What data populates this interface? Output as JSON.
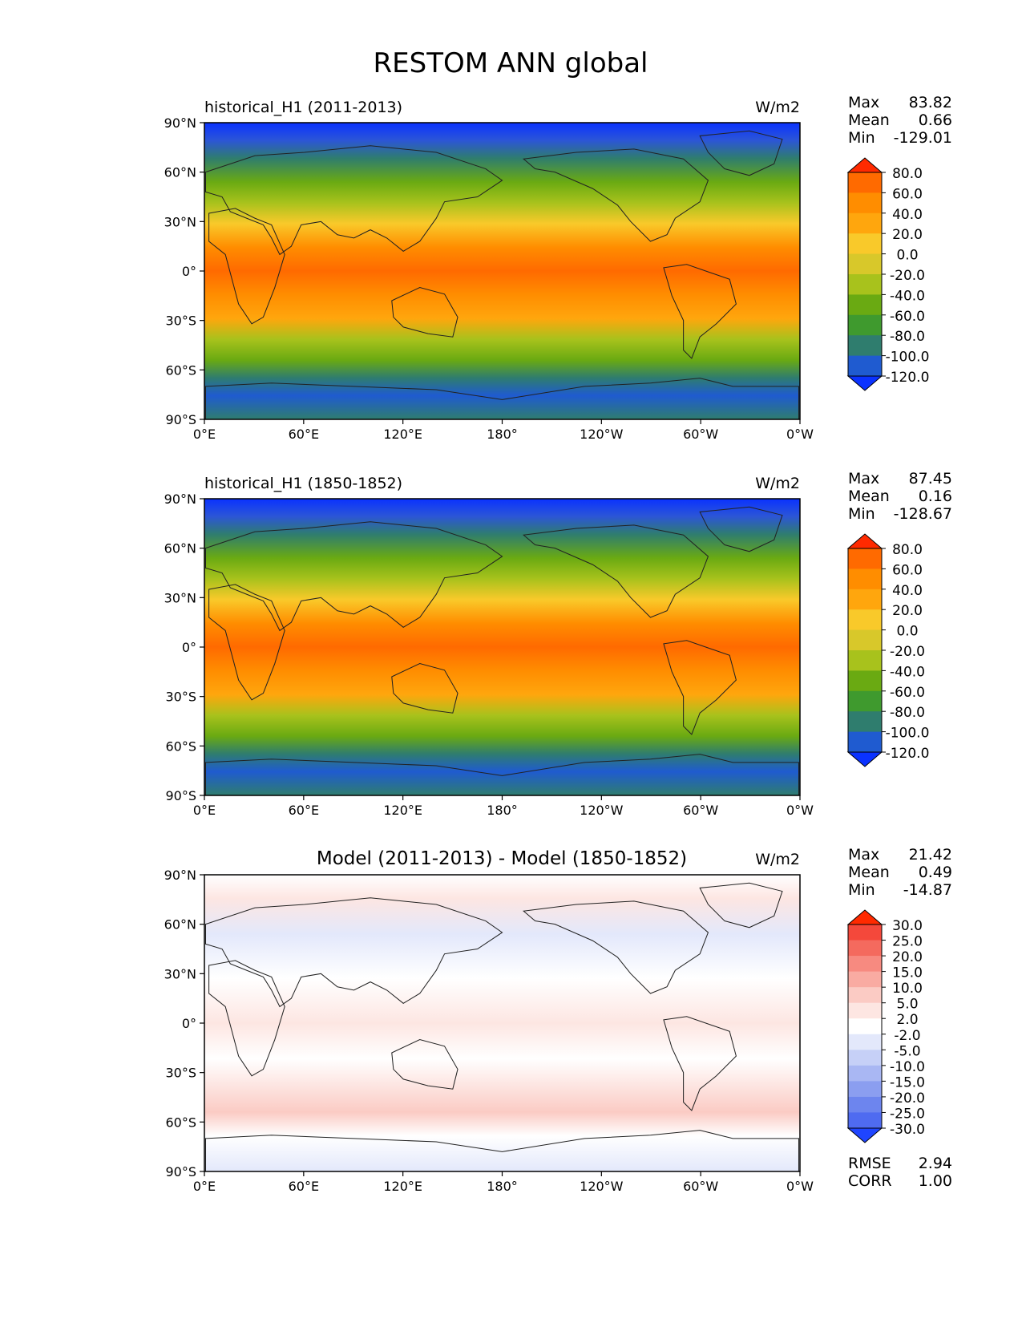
{
  "figure_title": "RESTOM ANN global",
  "units": "W/m2",
  "lat_ticks": [
    "90°N",
    "60°N",
    "30°N",
    "0°",
    "30°S",
    "60°S",
    "90°S"
  ],
  "lon_ticks": [
    "0°E",
    "60°E",
    "120°E",
    "180°",
    "120°W",
    "60°W",
    "0°W"
  ],
  "chart_data": [
    {
      "type": "heatmap",
      "title": "historical_H1 (2011-2013)",
      "units": "W/m2",
      "stats": {
        "max": "83.82",
        "mean": "0.66",
        "min": "-129.01"
      },
      "colorbar_levels": [
        "80.0",
        "60.0",
        "40.0",
        "20.0",
        "0.0",
        "-20.0",
        "-40.0",
        "-60.0",
        "-80.0",
        "-100.0",
        "-120.0"
      ],
      "colorbar_colors": [
        "#ff2a00",
        "#ff6a00",
        "#ff8d00",
        "#ffa60d",
        "#f9c92a",
        "#d8c82a",
        "#a8c21c",
        "#6aaa12",
        "#3f9a2e",
        "#2f7d6e",
        "#1f5bd0",
        "#0a32ff"
      ],
      "xlim": [
        0,
        360
      ],
      "ylim": [
        -90,
        90
      ]
    },
    {
      "type": "heatmap",
      "title": "historical_H1 (1850-1852)",
      "units": "W/m2",
      "stats": {
        "max": "87.45",
        "mean": "0.16",
        "min": "-128.67"
      },
      "colorbar_levels": [
        "80.0",
        "60.0",
        "40.0",
        "20.0",
        "0.0",
        "-20.0",
        "-40.0",
        "-60.0",
        "-80.0",
        "-100.0",
        "-120.0"
      ],
      "colorbar_colors": [
        "#ff2a00",
        "#ff6a00",
        "#ff8d00",
        "#ffa60d",
        "#f9c92a",
        "#d8c82a",
        "#a8c21c",
        "#6aaa12",
        "#3f9a2e",
        "#2f7d6e",
        "#1f5bd0",
        "#0a32ff"
      ],
      "xlim": [
        0,
        360
      ],
      "ylim": [
        -90,
        90
      ]
    },
    {
      "type": "heatmap",
      "title": "Model (2011-2013) - Model (1850-1852)",
      "units": "W/m2",
      "stats": {
        "max": "21.42",
        "mean": "0.49",
        "min": "-14.87"
      },
      "colorbar_levels": [
        "30.0",
        "25.0",
        "20.0",
        "15.0",
        "10.0",
        "5.0",
        "2.0",
        "-2.0",
        "-5.0",
        "-10.0",
        "-15.0",
        "-20.0",
        "-25.0",
        "-30.0"
      ],
      "colorbar_colors": [
        "#ff2a00",
        "#f4483b",
        "#f46a5e",
        "#f78a80",
        "#f9aba2",
        "#fbcbc4",
        "#fde6e2",
        "#ffffff",
        "#e3e8fb",
        "#c6d0f7",
        "#a9b7f3",
        "#8b9ef0",
        "#6d85ee",
        "#4f6bf0",
        "#1f45ff"
      ],
      "metrics": {
        "rmse": "2.94",
        "corr": "1.00"
      },
      "xlim": [
        0,
        360
      ],
      "ylim": [
        -90,
        90
      ]
    }
  ],
  "labels": {
    "max": "Max",
    "mean": "Mean",
    "min": "Min",
    "rmse": "RMSE",
    "corr": "CORR"
  }
}
